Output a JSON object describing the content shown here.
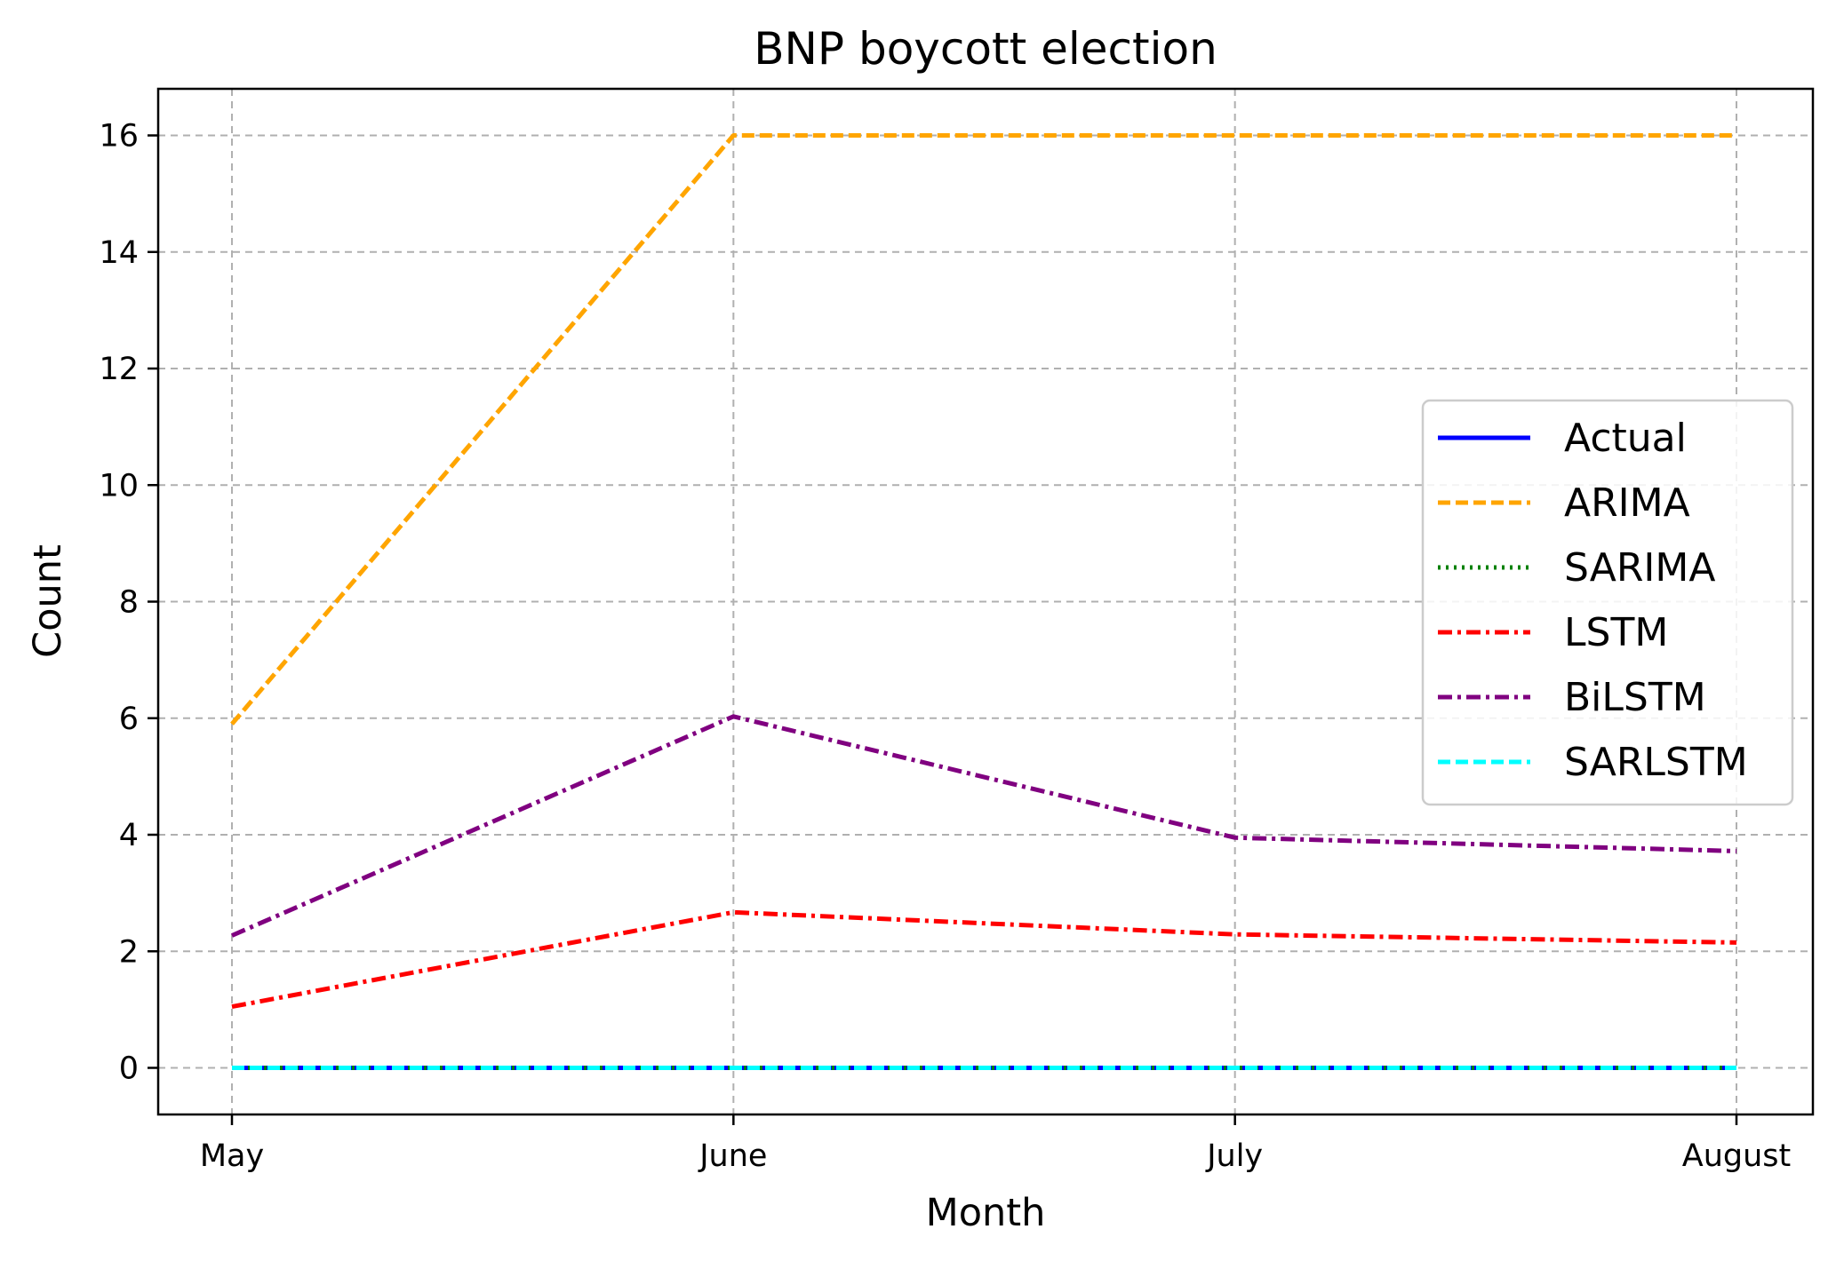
{
  "chart_data": {
    "type": "line",
    "title": "BNP boycott election",
    "xlabel": "Month",
    "ylabel": "Count",
    "categories": [
      "May",
      "June",
      "July",
      "August"
    ],
    "ylim": [
      -0.8,
      16.8
    ],
    "yticks": [
      0,
      2,
      4,
      6,
      8,
      10,
      12,
      14,
      16
    ],
    "grid": true,
    "legend_position": "center-right",
    "series": [
      {
        "name": "Actual",
        "values": [
          0,
          0,
          0,
          0
        ],
        "color": "#0000ff",
        "linestyle": "solid"
      },
      {
        "name": "ARIMA",
        "values": [
          5.9,
          16.0,
          16.0,
          16.0
        ],
        "color": "#ffa500",
        "linestyle": "dashed"
      },
      {
        "name": "SARIMA",
        "values": [
          0,
          0,
          0,
          0
        ],
        "color": "#008000",
        "linestyle": "dotted"
      },
      {
        "name": "LSTM",
        "values": [
          1.05,
          2.67,
          2.29,
          2.15
        ],
        "color": "#ff0000",
        "linestyle": "dashdot"
      },
      {
        "name": "BiLSTM",
        "values": [
          2.27,
          6.03,
          3.95,
          3.72
        ],
        "color": "#800080",
        "linestyle": "dashdot"
      },
      {
        "name": "SARLSTM",
        "values": [
          0,
          0,
          0,
          0
        ],
        "color": "#00ffff",
        "linestyle": "dashed"
      }
    ]
  }
}
